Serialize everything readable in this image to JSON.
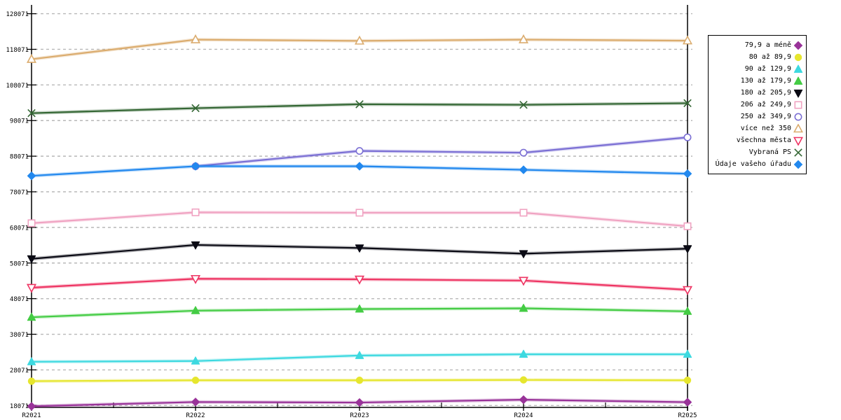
{
  "chart_data": {
    "type": "line",
    "title": "",
    "xlabel": "",
    "ylabel": "",
    "grid": "horizontal-dashed",
    "legend_position": "right-outside",
    "background_color": "#ffffff",
    "grid_color": "#b8b8b8",
    "axis_color": "#000000",
    "x": [
      "R2021",
      "R2022",
      "R2023",
      "R2024",
      "R2025"
    ],
    "yticks": [
      18071,
      28071,
      38071,
      48071,
      58071,
      68071,
      78071,
      88071,
      98071,
      108071,
      118071,
      128071
    ],
    "ylim": [
      16000,
      130000
    ],
    "right_frame_line_at_x": "R2025",
    "series": [
      {
        "name": "79,9 a méně",
        "marker": "diamond",
        "fill": "filled",
        "color": "#993399",
        "values": [
          17850,
          19050,
          18900,
          19700,
          19000
        ]
      },
      {
        "name": "80 až 89,9",
        "marker": "circle",
        "fill": "filled",
        "color": "#E6E62E",
        "values": [
          24900,
          25150,
          25150,
          25250,
          25150
        ]
      },
      {
        "name": "90 až 129,9",
        "marker": "triangle-up",
        "fill": "filled",
        "color": "#3DD9E0",
        "values": [
          30350,
          30550,
          32100,
          32450,
          32450
        ]
      },
      {
        "name": "130 až 179,9",
        "marker": "triangle-up",
        "fill": "filled",
        "color": "#44CC44",
        "values": [
          42850,
          44700,
          45150,
          45350,
          44500
        ]
      },
      {
        "name": "180 až 205,9",
        "marker": "triangle-down",
        "fill": "filled",
        "color": "#0A0A14",
        "values": [
          59250,
          63150,
          62300,
          60700,
          62100
        ]
      },
      {
        "name": "206 až 249,9",
        "marker": "square",
        "fill": "open",
        "color": "#F0A3C2",
        "values": [
          69250,
          72300,
          72200,
          72200,
          68400
        ]
      },
      {
        "name": "250 až 349,9",
        "marker": "circle",
        "fill": "open",
        "color": "#7B6FD4",
        "values": [
          null,
          85250,
          89550,
          89050,
          93350
        ]
      },
      {
        "name": "více než 350",
        "marker": "triangle-up",
        "fill": "open",
        "color": "#DBAC6E",
        "values": [
          115300,
          120800,
          120450,
          120800,
          120500
        ]
      },
      {
        "name": "všechna města",
        "marker": "triangle-down",
        "fill": "open",
        "color": "#EE3563",
        "values": [
          51150,
          53650,
          53500,
          53150,
          50550
        ]
      },
      {
        "name": "Vybraná PS",
        "marker": "x-cross",
        "fill": "open",
        "color": "#336633",
        "values": [
          100150,
          101550,
          102650,
          102500,
          102950
        ]
      },
      {
        "name": "Údaje vašeho úřadu",
        "marker": "diamond",
        "fill": "filled",
        "color": "#2288EE",
        "values": [
          82550,
          85250,
          85250,
          84250,
          83150
        ]
      }
    ]
  }
}
